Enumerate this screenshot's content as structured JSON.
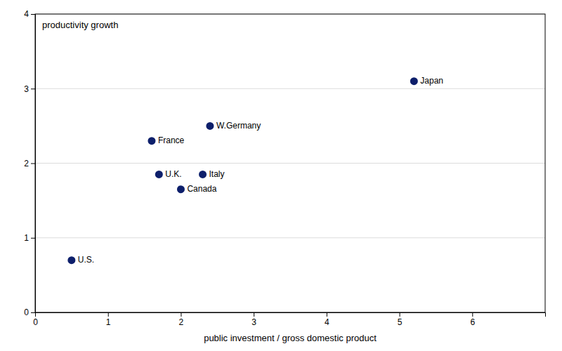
{
  "chart_data": {
    "type": "scatter",
    "xlabel": "public investment / gross domestic product",
    "ylabel": "productivity growth",
    "labels": [
      "U.S.",
      "U.K.",
      "Canada",
      "France",
      "W.Germany",
      "Italy",
      "Japan"
    ],
    "x": [
      0.5,
      1.7,
      2.0,
      1.6,
      2.4,
      2.3,
      5.2
    ],
    "values": [
      0.7,
      1.85,
      1.65,
      2.3,
      2.5,
      1.85,
      3.1
    ],
    "color": "#0d1f6b",
    "xlim": [
      0,
      7
    ],
    "ylim": [
      0,
      4
    ],
    "xticks": [
      0,
      1,
      2,
      3,
      4,
      5,
      6
    ],
    "yticks": [
      0,
      1,
      2,
      3,
      4
    ],
    "grid": "y"
  }
}
